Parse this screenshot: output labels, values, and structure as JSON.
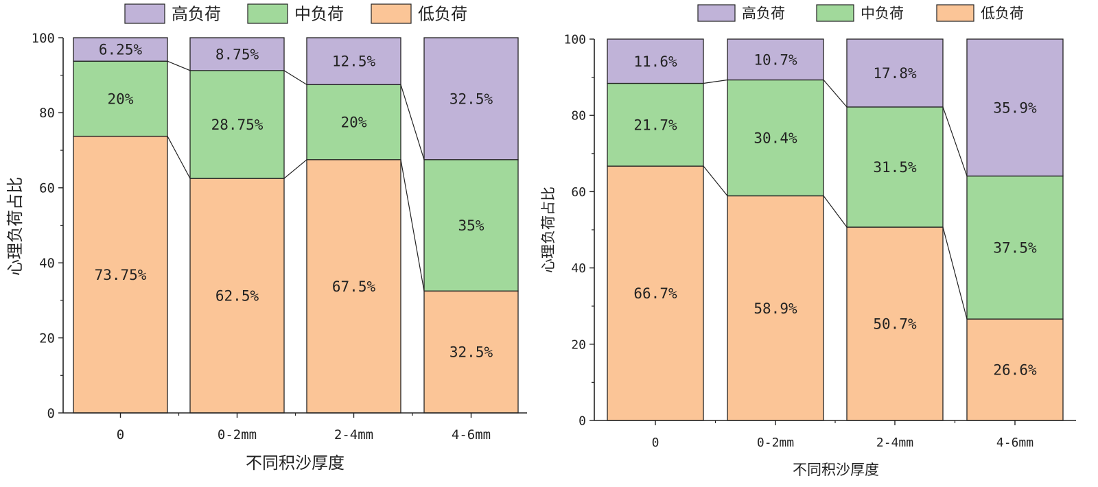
{
  "colors": {
    "high": "#c0b3d8",
    "mid": "#a1d99b",
    "low": "#fbc597",
    "stroke": "#222222"
  },
  "chart_data": [
    {
      "type": "bar",
      "stacked": true,
      "connector_lines": true,
      "categories": [
        "0",
        "0-2mm",
        "2-4mm",
        "4-6mm"
      ],
      "ylim": [
        0,
        100
      ],
      "yticks": [
        0,
        20,
        40,
        60,
        80,
        100
      ],
      "xlabel": "不同积沙厚度",
      "ylabel": "心理负荷占比",
      "legend_position": "top",
      "series": [
        {
          "name": "低负荷",
          "key": "low",
          "values": [
            73.75,
            62.5,
            67.5,
            32.5
          ],
          "labels": [
            "73.75%",
            "62.5%",
            "67.5%",
            "32.5%"
          ]
        },
        {
          "name": "中负荷",
          "key": "mid",
          "values": [
            20,
            28.75,
            20,
            35
          ],
          "labels": [
            "20%",
            "28.75%",
            "20%",
            "35%"
          ]
        },
        {
          "name": "高负荷",
          "key": "high",
          "values": [
            6.25,
            8.75,
            12.5,
            32.5
          ],
          "labels": [
            "6.25%",
            "8.75%",
            "12.5%",
            "32.5%"
          ]
        }
      ]
    },
    {
      "type": "bar",
      "stacked": true,
      "connector_lines": true,
      "categories": [
        "0",
        "0-2mm",
        "2-4mm",
        "4-6mm"
      ],
      "ylim": [
        0,
        100
      ],
      "yticks": [
        0,
        20,
        40,
        60,
        80,
        100
      ],
      "xlabel": "不同积沙厚度",
      "ylabel": "心理负荷占比",
      "legend_position": "top",
      "series": [
        {
          "name": "低负荷",
          "key": "low",
          "values": [
            66.7,
            58.9,
            50.7,
            26.6
          ],
          "labels": [
            "66.7%",
            "58.9%",
            "50.7%",
            "26.6%"
          ]
        },
        {
          "name": "中负荷",
          "key": "mid",
          "values": [
            21.7,
            30.4,
            31.5,
            37.5
          ],
          "labels": [
            "21.7%",
            "30.4%",
            "31.5%",
            "37.5%"
          ]
        },
        {
          "name": "高负荷",
          "key": "high",
          "values": [
            11.6,
            10.7,
            17.8,
            35.9
          ],
          "labels": [
            "11.6%",
            "10.7%",
            "17.8%",
            "35.9%"
          ]
        }
      ]
    }
  ]
}
